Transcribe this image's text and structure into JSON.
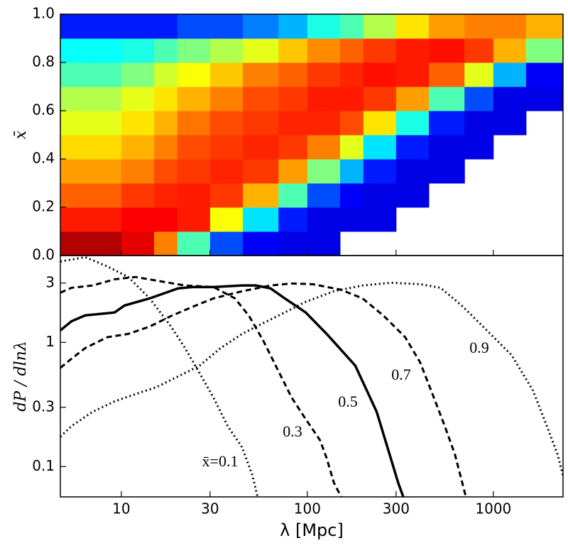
{
  "chart_data": [
    {
      "type": "heatmap",
      "ylabel": "x̄",
      "colormap": "jet",
      "log_x": true,
      "xlim": [
        4.7,
        2370
      ],
      "xticks": [
        10,
        30,
        100,
        300,
        1000
      ],
      "ylim": [
        0,
        1
      ],
      "yticks": [
        {
          "value": 0,
          "label": "0.0"
        },
        0.2,
        0.4,
        0.6,
        0.8,
        {
          "value": 1,
          "label": "1.0"
        }
      ],
      "x_edges": [
        4.7,
        7,
        10,
        15,
        20,
        30,
        45,
        70,
        100,
        150,
        200,
        300,
        450,
        700,
        1000,
        1500,
        2370
      ],
      "y_edges": [
        0,
        0.1,
        0.2,
        0.3,
        0.4,
        0.5,
        0.6,
        0.7,
        0.8,
        0.9,
        1.0
      ],
      "z": [
        [
          0.95,
          0.85,
          0.78,
          0.72,
          0.66,
          0.6,
          0.55,
          0.45,
          0.38,
          0.15
        ],
        [
          0.95,
          0.85,
          0.78,
          0.72,
          0.66,
          0.6,
          0.55,
          0.45,
          0.38,
          0.15
        ],
        [
          0.9,
          0.88,
          0.82,
          0.75,
          0.7,
          0.65,
          0.6,
          0.5,
          0.4,
          0.15
        ],
        [
          0.75,
          0.88,
          0.84,
          0.8,
          0.75,
          0.7,
          0.65,
          0.58,
          0.45,
          0.15
        ],
        [
          0.45,
          0.85,
          0.85,
          0.82,
          0.8,
          0.76,
          0.7,
          0.62,
          0.5,
          0.2
        ],
        [
          0.2,
          0.62,
          0.82,
          0.84,
          0.82,
          0.8,
          0.75,
          0.68,
          0.55,
          0.2
        ],
        [
          0.12,
          0.35,
          0.7,
          0.82,
          0.84,
          0.82,
          0.8,
          0.75,
          0.6,
          0.25
        ],
        [
          0.1,
          0.15,
          0.45,
          0.72,
          0.82,
          0.84,
          0.82,
          0.78,
          0.68,
          0.3
        ],
        [
          0.1,
          0.1,
          0.2,
          0.5,
          0.75,
          0.84,
          0.85,
          0.82,
          0.74,
          0.4
        ],
        [
          null,
          0.1,
          0.12,
          0.3,
          0.6,
          0.8,
          0.85,
          0.84,
          0.78,
          0.45
        ],
        [
          null,
          0.1,
          0.1,
          0.15,
          0.35,
          0.65,
          0.82,
          0.86,
          0.82,
          0.55
        ],
        [
          null,
          null,
          0.1,
          0.1,
          0.15,
          0.4,
          0.72,
          0.85,
          0.85,
          0.65
        ],
        [
          null,
          null,
          null,
          0.1,
          0.1,
          0.15,
          0.45,
          0.78,
          0.86,
          0.72
        ],
        [
          null,
          null,
          null,
          null,
          0.1,
          0.1,
          0.2,
          0.6,
          0.82,
          0.75
        ],
        [
          null,
          null,
          null,
          null,
          null,
          0.1,
          0.1,
          0.3,
          0.7,
          0.75
        ],
        [
          null,
          null,
          null,
          null,
          null,
          null,
          0.1,
          0.12,
          0.5,
          0.7
        ]
      ]
    },
    {
      "type": "line",
      "xlabel": "λ [Mpc]",
      "ylabel": "dP / dlnλ",
      "log_x": true,
      "log_y": true,
      "xlim": [
        4.7,
        2370
      ],
      "xticks": [
        10,
        30,
        100,
        300,
        1000
      ],
      "ylim": [
        0.057,
        5
      ],
      "yticks": [
        0.1,
        0.3,
        1,
        3
      ],
      "series": [
        {
          "name": "x̄=0.1",
          "color": "#000000",
          "dash": "dotted",
          "x": [
            4.7,
            6.4,
            8.4,
            10.9,
            14.2,
            18.5,
            22,
            26.3,
            31.3,
            37.3,
            44.6,
            50.8,
            54
          ],
          "values": [
            4.48,
            4.85,
            4.09,
            3.36,
            2.26,
            1.34,
            0.9,
            0.568,
            0.359,
            0.212,
            0.143,
            0.084,
            0.057
          ]
        },
        {
          "name": "0.3",
          "color": "#000000",
          "dash": "dashed",
          "x": [
            4.7,
            5.4,
            7.0,
            9.2,
            11.9,
            15.5,
            22.0,
            31.3,
            40.8,
            48.6,
            58,
            69,
            82.4,
            98,
            117,
            127,
            139,
            152
          ],
          "values": [
            2.51,
            2.75,
            2.87,
            3.22,
            3.36,
            3.14,
            2.87,
            2.79,
            2.26,
            1.63,
            1.03,
            0.61,
            0.359,
            0.241,
            0.163,
            0.117,
            0.074,
            0.057
          ]
        },
        {
          "name": "0.5",
          "color": "#000000",
          "dash": "solid",
          "x": [
            4.7,
            5.4,
            6.4,
            9.2,
            10.4,
            14.2,
            20.2,
            24.1,
            31.3,
            44.6,
            53,
            63.4,
            75.6,
            98,
            127,
            181,
            236,
            308,
            328
          ],
          "values": [
            1.25,
            1.48,
            1.65,
            1.74,
            1.98,
            2.26,
            2.72,
            2.79,
            2.79,
            2.87,
            2.87,
            2.72,
            2.26,
            1.74,
            1.17,
            0.65,
            0.276,
            0.074,
            0.057
          ]
        },
        {
          "name": "0.7",
          "color": "#000000",
          "dash": "dashed",
          "x": [
            4.7,
            5.4,
            6.4,
            8.4,
            10.9,
            14.2,
            18.5,
            24.1,
            31.3,
            44.6,
            63.4,
            82.4,
            107,
            152,
            198,
            258,
            336,
            404,
            479,
            548,
            622,
            712
          ],
          "values": [
            0.623,
            0.739,
            0.9,
            1.1,
            1.17,
            1.34,
            1.63,
            1.93,
            2.26,
            2.58,
            2.87,
            2.98,
            2.94,
            2.65,
            2.26,
            1.63,
            1.1,
            0.69,
            0.359,
            0.212,
            0.125,
            0.057
          ]
        },
        {
          "name": "0.9",
          "color": "#000000",
          "dash": "dotted",
          "x": [
            4.7,
            5.4,
            7.0,
            9.2,
            11.9,
            15.5,
            20.2,
            26.3,
            34.2,
            44.6,
            58,
            75.6,
            98,
            139,
            198,
            282,
            404,
            520,
            676,
            880,
            1254,
            1634,
            1940,
            2217,
            2370
          ],
          "values": [
            0.174,
            0.212,
            0.276,
            0.335,
            0.383,
            0.437,
            0.532,
            0.648,
            0.9,
            1.17,
            1.43,
            1.74,
            2.12,
            2.58,
            2.87,
            3.02,
            2.94,
            2.75,
            1.98,
            1.34,
            0.789,
            0.409,
            0.212,
            0.125,
            0.084
          ]
        }
      ]
    }
  ]
}
